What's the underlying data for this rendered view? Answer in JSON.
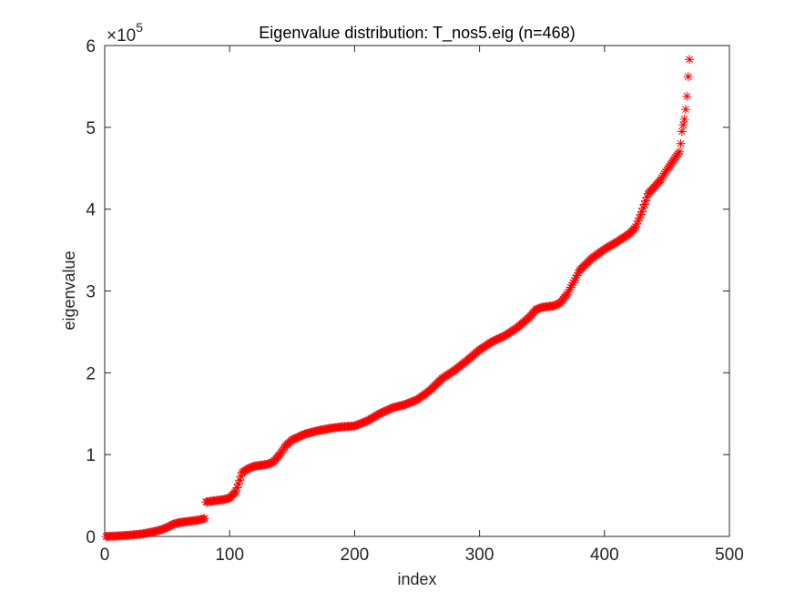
{
  "chart_data": {
    "type": "scatter",
    "title": "Eigenvalue distribution: T_nos5.eig (n=468)",
    "xlabel": "index",
    "ylabel": "eigenvalue",
    "xlim": [
      0,
      500
    ],
    "ylim": [
      0,
      600000
    ],
    "x_ticks": [
      0,
      100,
      200,
      300,
      400,
      500
    ],
    "y_ticks": [
      0,
      1,
      2,
      3,
      4,
      5,
      6
    ],
    "y_exponent_base": "×10",
    "y_exponent_power": "5",
    "marker": "*",
    "marker_color": "#ff0000",
    "grid": false,
    "legend": "none",
    "n_points": 468,
    "curve_knots_x": [
      1,
      10,
      20,
      30,
      40,
      45,
      50,
      55,
      60,
      65,
      70,
      75,
      80,
      81,
      85,
      90,
      95,
      100,
      105,
      110,
      115,
      120,
      125,
      130,
      135,
      140,
      145,
      150,
      160,
      170,
      180,
      190,
      200,
      210,
      220,
      230,
      240,
      250,
      260,
      270,
      280,
      290,
      300,
      310,
      320,
      330,
      340,
      345,
      350,
      355,
      360,
      365,
      370,
      375,
      380,
      390,
      400,
      410,
      420,
      425,
      430,
      435,
      440,
      445,
      450,
      455,
      460
    ],
    "curve_knots_y": [
      0,
      500,
      1500,
      3000,
      6000,
      8000,
      11000,
      15000,
      17000,
      18000,
      19000,
      20000,
      22000,
      42000,
      43000,
      44000,
      45000,
      47000,
      55000,
      78000,
      83000,
      86000,
      87000,
      88000,
      91000,
      100000,
      111000,
      118000,
      125000,
      129000,
      132000,
      134000,
      135000,
      141000,
      150000,
      157000,
      161000,
      167000,
      178000,
      193000,
      203000,
      215000,
      228000,
      238000,
      245000,
      255000,
      268000,
      277000,
      280000,
      281000,
      282000,
      286000,
      296000,
      310000,
      325000,
      340000,
      351000,
      360000,
      370000,
      378000,
      397000,
      419000,
      427000,
      436000,
      448000,
      459000,
      470000
    ],
    "tail_points": [
      [
        461,
        480000
      ],
      [
        462,
        495000
      ],
      [
        463,
        503000
      ],
      [
        464,
        510000
      ],
      [
        465,
        522000
      ],
      [
        466,
        538000
      ],
      [
        467,
        562000
      ],
      [
        468,
        583000
      ]
    ]
  }
}
